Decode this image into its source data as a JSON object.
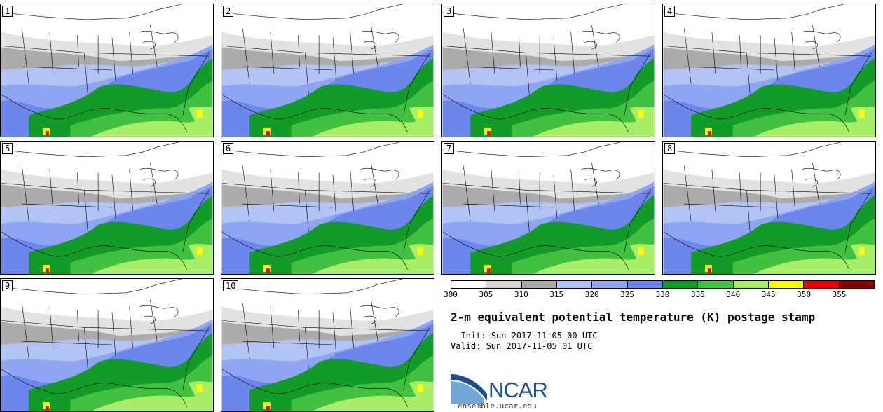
{
  "panels": [
    {
      "label": "1"
    },
    {
      "label": "2"
    },
    {
      "label": "3"
    },
    {
      "label": "4"
    },
    {
      "label": "5"
    },
    {
      "label": "6"
    },
    {
      "label": "7"
    },
    {
      "label": "8"
    },
    {
      "label": "9"
    },
    {
      "label": "10"
    }
  ],
  "colorbar": {
    "colors": [
      "#ffffff",
      "#d6d6d6",
      "#a8a8a8",
      "#b4c3f6",
      "#8ea6f2",
      "#6c86ec",
      "#119c28",
      "#42c040",
      "#a8ee66",
      "#ffff00",
      "#e00000",
      "#8a0000"
    ],
    "ticks": [
      "300",
      "305",
      "310",
      "315",
      "320",
      "325",
      "330",
      "335",
      "340",
      "345",
      "350",
      "355"
    ]
  },
  "title": "2-m equivalent potential temperature (K) postage stamp",
  "init_text": "  Init: Sun 2017-11-05 00 UTC",
  "valid_text": "Valid: Sun 2017-11-05 01 UTC",
  "logo": {
    "text": "NCAR",
    "site": "ensemble.ucar.edu",
    "color": "#1b4f8e"
  }
}
